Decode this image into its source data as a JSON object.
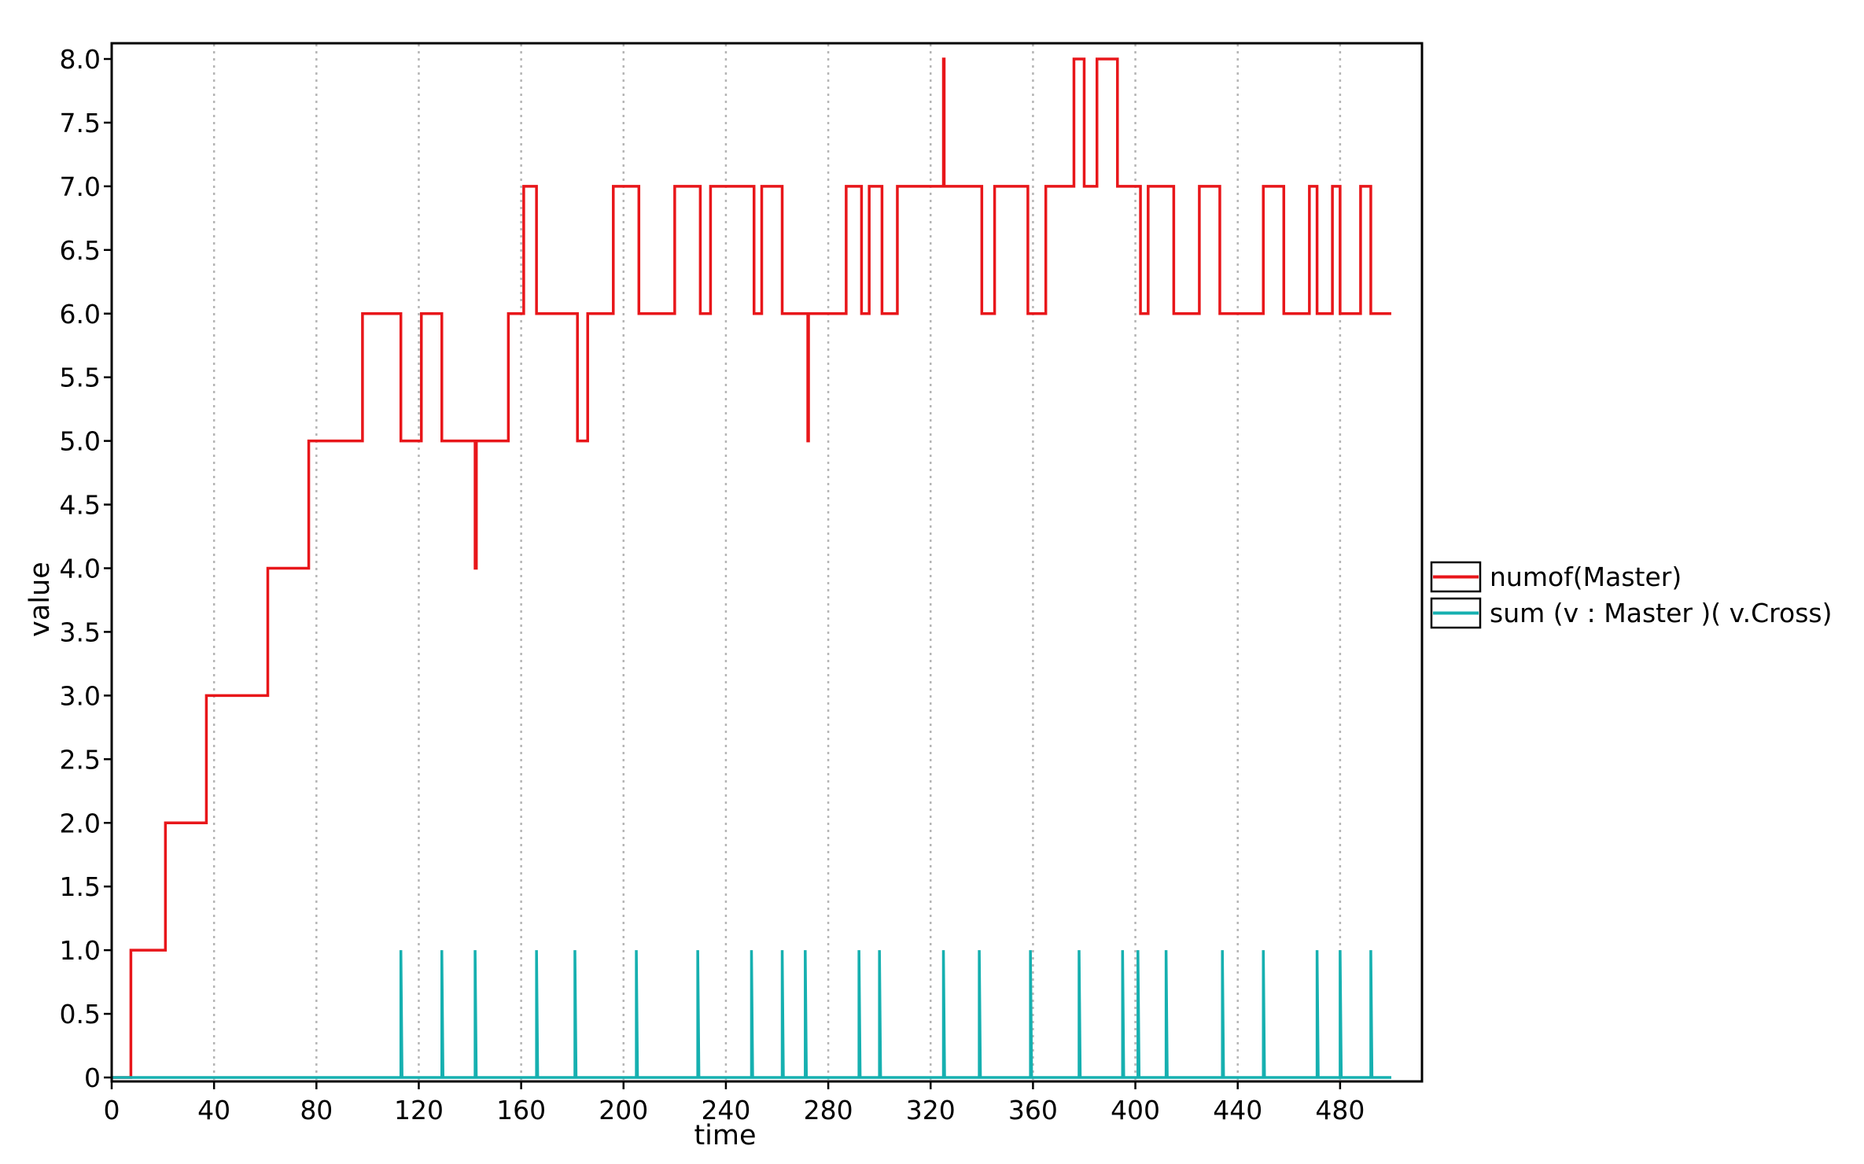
{
  "chart_data": {
    "type": "line",
    "line_style": "step",
    "title": "",
    "xlabel": "time",
    "ylabel": "value",
    "xlim": [
      0,
      512
    ],
    "ylim": [
      0,
      8.2
    ],
    "x_ticks": [
      0,
      40,
      80,
      120,
      160,
      200,
      240,
      280,
      320,
      360,
      400,
      440,
      480
    ],
    "x_tick_labels": [
      "0",
      "40",
      "80",
      "120",
      "160",
      "200",
      "240",
      "280",
      "320",
      "360",
      "400",
      "440",
      "480"
    ],
    "y_ticks": [
      0,
      0.5,
      1,
      1.5,
      2,
      2.5,
      3,
      3.5,
      4,
      4.5,
      5,
      5.5,
      6,
      6.5,
      7,
      7.5,
      8
    ],
    "y_tick_labels": [
      "0",
      "0.5",
      "1.0",
      "1.5",
      "2.0",
      "2.5",
      "3.0",
      "3.5",
      "4.0",
      "4.5",
      "5.0",
      "5.5",
      "6.0",
      "6.5",
      "7.0",
      "7.5",
      "8.0"
    ],
    "grid": "vertical dotted",
    "legend_position": "right",
    "series": [
      {
        "name": "numof(Master)",
        "color": "#e8161a",
        "x": [
          0,
          7.5,
          21,
          37,
          61,
          77,
          98,
          113,
          121,
          129,
          142,
          142.5,
          143,
          155,
          161,
          166,
          182,
          186,
          196,
          206,
          220,
          230,
          234,
          251,
          254,
          262,
          272,
          272.3,
          272.6,
          287,
          293,
          296,
          301,
          307,
          325,
          325.3,
          325.6,
          340,
          345,
          358,
          365,
          376,
          380,
          385,
          393,
          402,
          405,
          415,
          425,
          433,
          438,
          450,
          458,
          468,
          471,
          477,
          480,
          488,
          492,
          500
        ],
        "y": [
          0,
          1,
          2,
          3,
          4,
          5,
          6,
          5,
          6,
          5,
          4,
          5,
          5,
          6,
          7,
          6,
          5,
          6,
          7,
          6,
          7,
          6,
          7,
          6,
          7,
          6,
          5,
          6,
          6,
          7,
          6,
          7,
          6,
          7,
          8,
          7,
          7,
          6,
          7,
          6,
          7,
          8,
          7,
          8,
          7,
          6,
          7,
          6,
          7,
          6,
          6,
          7,
          6,
          7,
          6,
          7,
          6,
          7,
          6,
          6
        ]
      },
      {
        "name": "sum (v : Master )( v.Cross)",
        "color": "#16b0b0",
        "x": [
          0,
          500
        ],
        "y": [
          0,
          0
        ],
        "spikes_at_x": [
          113,
          129,
          142,
          166,
          181,
          205,
          229,
          250,
          262,
          271,
          292,
          300,
          325,
          339,
          359,
          378,
          395,
          401,
          412,
          434,
          450,
          471,
          480,
          492
        ],
        "spike_value": 1
      }
    ]
  },
  "colors": {
    "frame": "#000000",
    "grid": "#b5b5b5",
    "background": "#ffffff"
  }
}
